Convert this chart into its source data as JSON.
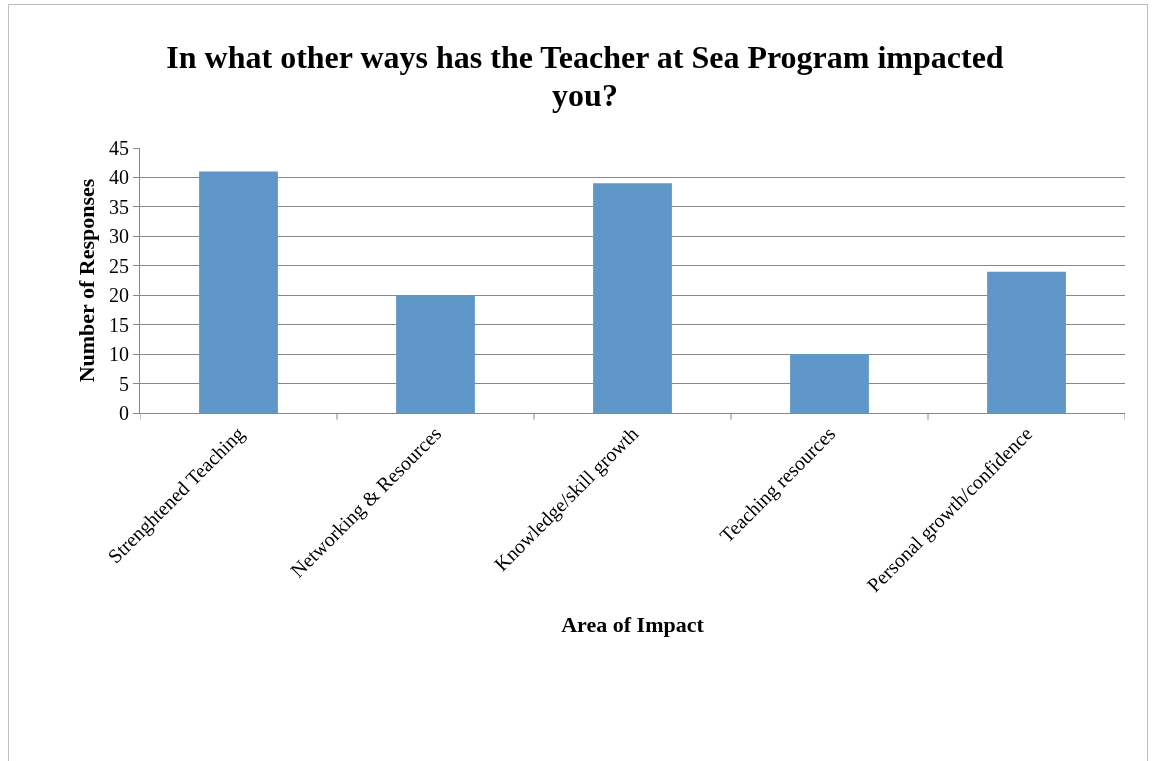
{
  "chart_data": {
    "type": "bar",
    "title": "In what other ways has the Teacher at Sea Program impacted you?",
    "xlabel": "Area of Impact",
    "ylabel": "Number of Responses",
    "categories": [
      "Strenghtened Teaching",
      "Networking & Resources",
      "Knowledge/skill growth",
      "Teaching resources",
      "Personal growth/confidence"
    ],
    "values": [
      41,
      20,
      39,
      10,
      24
    ],
    "color": "#6097c9",
    "ylim": [
      0,
      45
    ],
    "yticks": [
      0,
      5,
      10,
      15,
      20,
      25,
      30,
      35,
      40,
      45
    ],
    "grid": "y"
  }
}
